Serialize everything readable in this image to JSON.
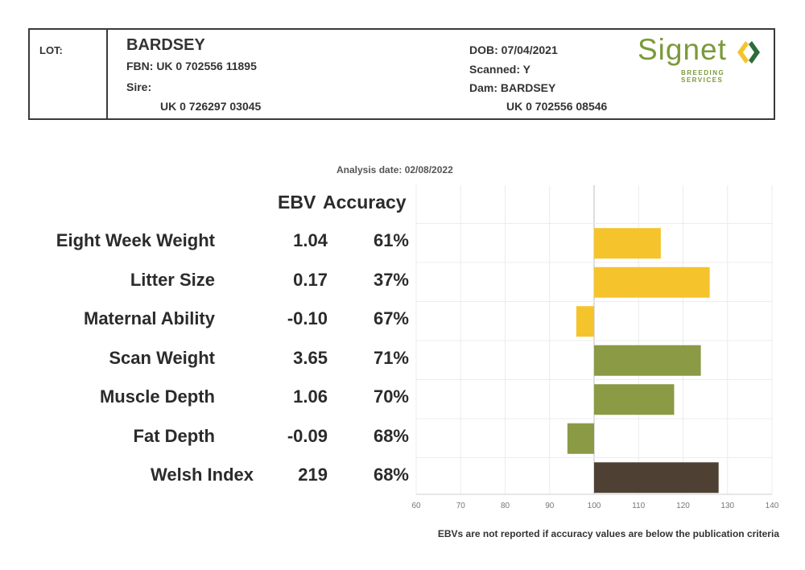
{
  "header": {
    "lot_label": "LOT:",
    "name": "BARDSEY",
    "fbn": "FBN: UK 0 702556 11895",
    "sire_label": "Sire:",
    "sire_id": "UK 0 726297 03045",
    "dob": "DOB: 07/04/2021",
    "scanned": "Scanned: Y",
    "dam": "Dam: BARDSEY",
    "dam_id": "UK 0 702556 08546"
  },
  "logo": {
    "word": "Signet",
    "sub": "BREEDING SERVICES",
    "color": "#7b9a3a"
  },
  "analysis_date": "Analysis date: 02/08/2022",
  "columns": {
    "ebv": "EBV",
    "accuracy": "Accuracy"
  },
  "footnote": "EBVs are not reported if accuracy values are below the publication criteria",
  "chart_data": {
    "type": "bar",
    "orientation": "horizontal",
    "categories": [
      "Eight Week Weight",
      "Litter Size",
      "Maternal Ability",
      "Scan Weight",
      "Muscle Depth",
      "Fat Depth",
      "Welsh Index"
    ],
    "ebv": [
      "1.04",
      "0.17",
      "-0.10",
      "3.65",
      "1.06",
      "-0.09",
      "219"
    ],
    "accuracy": [
      "61%",
      "37%",
      "67%",
      "71%",
      "70%",
      "68%",
      "68%"
    ],
    "values": [
      115,
      126,
      96,
      124,
      118,
      94,
      128
    ],
    "baseline": 100,
    "xlim": [
      60,
      140
    ],
    "xticks": [
      60,
      70,
      80,
      90,
      100,
      110,
      120,
      130,
      140
    ],
    "grid": true,
    "colors": [
      "#f5c42c",
      "#f5c42c",
      "#f5c42c",
      "#8a9a45",
      "#8a9a45",
      "#8a9a45",
      "#4e4033"
    ]
  }
}
